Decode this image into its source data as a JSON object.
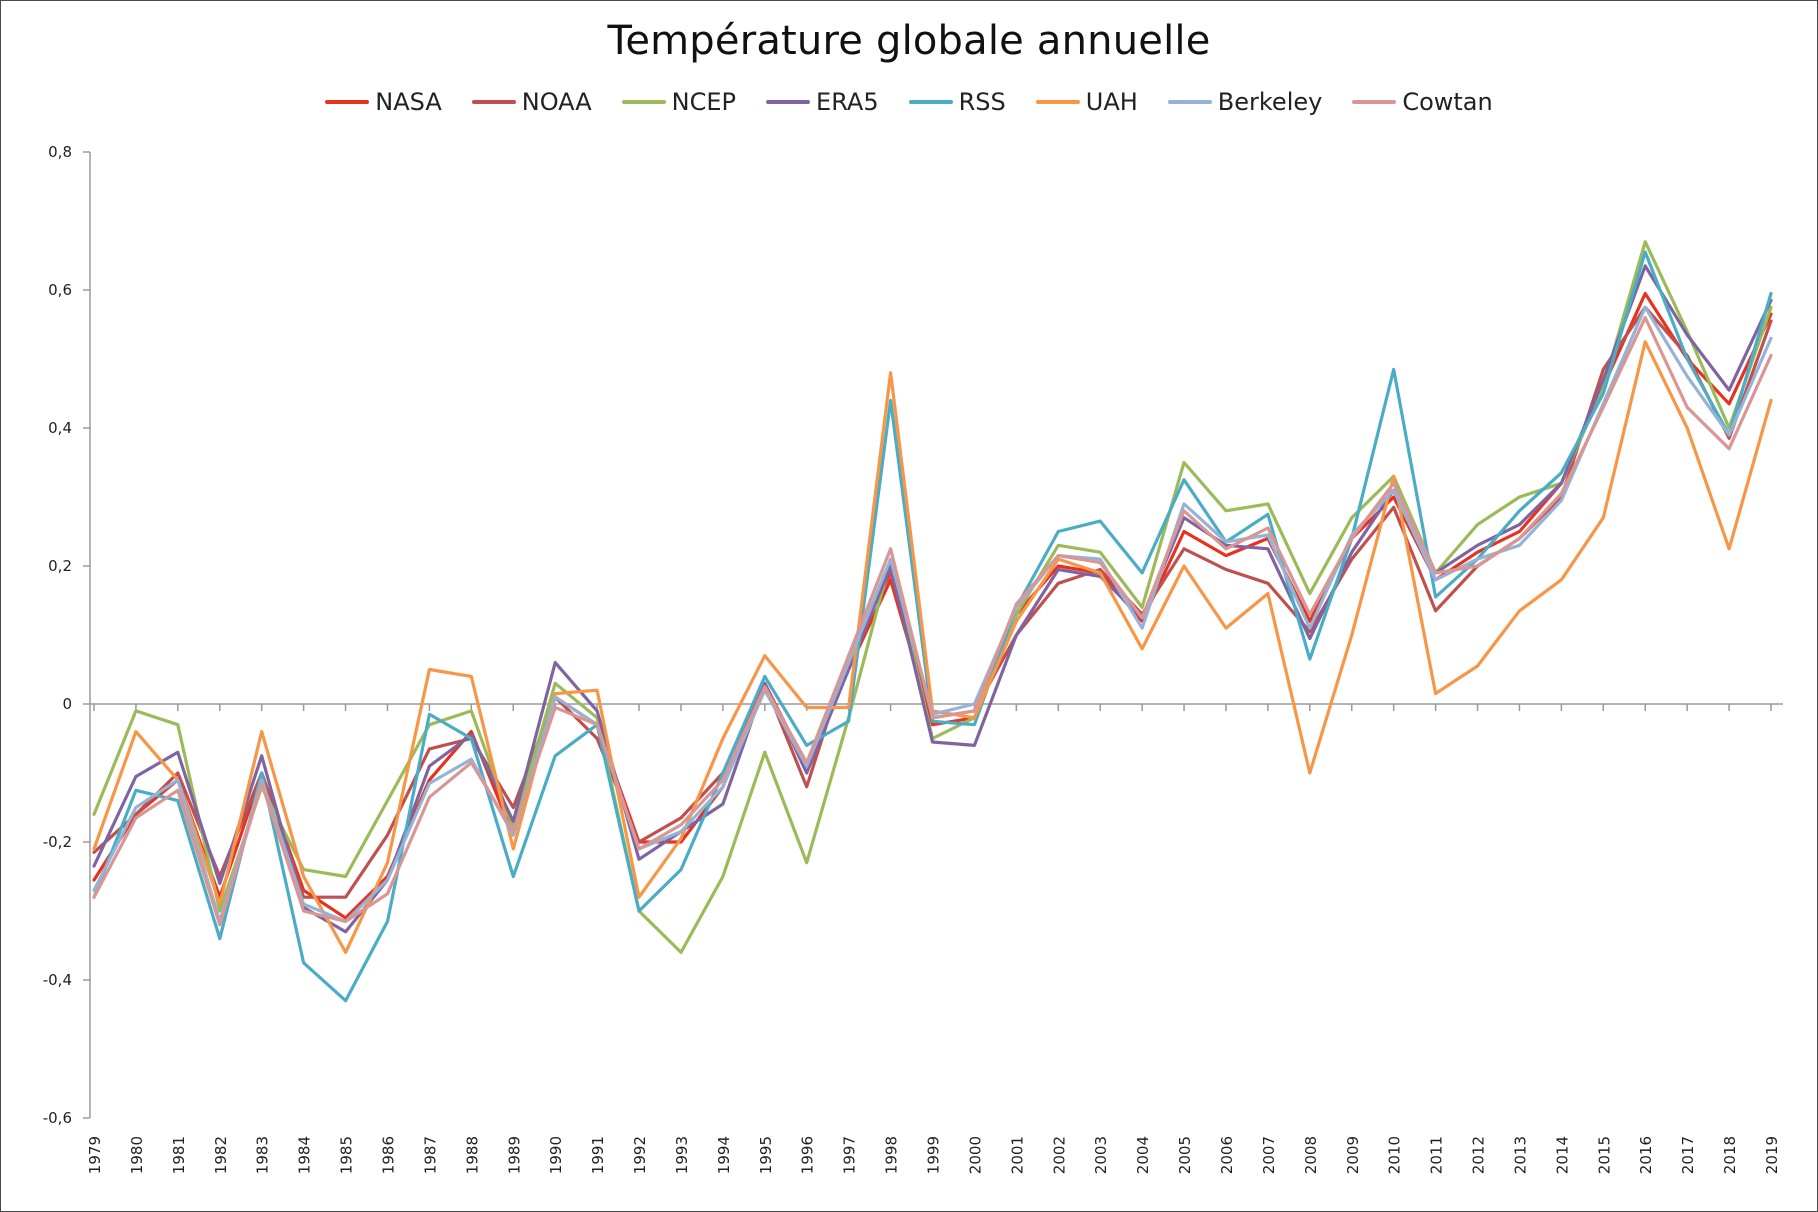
{
  "chart_data": {
    "type": "line",
    "title": "Température globale annuelle",
    "xlabel": "",
    "ylabel": "",
    "ylim": [
      -0.6,
      0.8
    ],
    "yticks": [
      -0.6,
      -0.4,
      -0.2,
      0,
      0.2,
      0.4,
      0.6,
      0.8
    ],
    "ytick_labels": [
      "-0,6",
      "-0,4",
      "-0,2",
      "0",
      "0,2",
      "0,4",
      "0,6",
      "0,8"
    ],
    "grid": false,
    "legend_position": "top",
    "categories": [
      "1979",
      "1980",
      "1981",
      "1982",
      "1983",
      "1984",
      "1985",
      "1986",
      "1987",
      "1988",
      "1989",
      "1990",
      "1991",
      "1992",
      "1993",
      "1994",
      "1995",
      "1996",
      "1997",
      "1998",
      "1999",
      "2000",
      "2001",
      "2002",
      "2003",
      "2004",
      "2005",
      "2006",
      "2007",
      "2008",
      "2009",
      "2010",
      "2011",
      "2012",
      "2013",
      "2014",
      "2015",
      "2016",
      "2017",
      "2018",
      "2019"
    ],
    "series": [
      {
        "name": "NASA",
        "color": "#e8321e",
        "values": [
          -0.255,
          -0.16,
          -0.11,
          -0.28,
          -0.1,
          -0.27,
          -0.31,
          -0.25,
          -0.11,
          -0.04,
          -0.19,
          0.01,
          -0.03,
          -0.2,
          -0.2,
          -0.12,
          0.03,
          -0.09,
          0.05,
          0.18,
          -0.03,
          -0.02,
          0.13,
          0.2,
          0.19,
          0.12,
          0.25,
          0.215,
          0.24,
          0.12,
          0.24,
          0.3,
          0.18,
          0.22,
          0.25,
          0.32,
          0.46,
          0.595,
          0.5,
          0.435,
          0.565
        ]
      },
      {
        "name": "NOAA",
        "color": "#c0504d",
        "values": [
          -0.215,
          -0.16,
          -0.1,
          -0.25,
          -0.1,
          -0.28,
          -0.28,
          -0.19,
          -0.065,
          -0.05,
          -0.15,
          0.01,
          -0.05,
          -0.2,
          -0.165,
          -0.1,
          0.03,
          -0.12,
          0.07,
          0.19,
          -0.02,
          -0.01,
          0.1,
          0.175,
          0.195,
          0.13,
          0.225,
          0.195,
          0.175,
          0.105,
          0.21,
          0.285,
          0.135,
          0.2,
          0.24,
          0.3,
          0.485,
          0.575,
          0.505,
          0.385,
          0.555
        ]
      },
      {
        "name": "NCEP",
        "color": "#9bbb59",
        "values": [
          -0.16,
          -0.01,
          -0.03,
          -0.3,
          -0.12,
          -0.24,
          -0.25,
          -0.14,
          -0.03,
          -0.01,
          -0.18,
          0.03,
          -0.02,
          -0.3,
          -0.36,
          -0.25,
          -0.07,
          -0.23,
          -0.02,
          0.21,
          -0.05,
          -0.02,
          0.13,
          0.23,
          0.22,
          0.14,
          0.35,
          0.28,
          0.29,
          0.16,
          0.27,
          0.33,
          0.19,
          0.26,
          0.3,
          0.32,
          0.46,
          0.67,
          0.54,
          0.4,
          0.575
        ]
      },
      {
        "name": "ERA5",
        "color": "#8064a2",
        "values": [
          -0.235,
          -0.105,
          -0.07,
          -0.26,
          -0.075,
          -0.295,
          -0.33,
          -0.255,
          -0.09,
          -0.045,
          -0.17,
          0.06,
          -0.01,
          -0.225,
          -0.185,
          -0.145,
          0.03,
          -0.1,
          0.05,
          0.2,
          -0.055,
          -0.06,
          0.1,
          0.195,
          0.185,
          0.125,
          0.27,
          0.23,
          0.225,
          0.095,
          0.22,
          0.31,
          0.19,
          0.23,
          0.26,
          0.32,
          0.47,
          0.635,
          0.535,
          0.455,
          0.585
        ]
      },
      {
        "name": "RSS",
        "color": "#4bacc6",
        "values": [
          -0.28,
          -0.125,
          -0.14,
          -0.34,
          -0.1,
          -0.375,
          -0.43,
          -0.315,
          -0.015,
          -0.05,
          -0.25,
          -0.075,
          -0.03,
          -0.3,
          -0.24,
          -0.1,
          0.04,
          -0.06,
          -0.025,
          0.44,
          -0.025,
          -0.03,
          0.14,
          0.25,
          0.265,
          0.19,
          0.325,
          0.235,
          0.275,
          0.065,
          0.24,
          0.485,
          0.155,
          0.21,
          0.28,
          0.335,
          0.45,
          0.655,
          0.5,
          0.39,
          0.595
        ]
      },
      {
        "name": "UAH",
        "color": "#f79646",
        "values": [
          -0.21,
          -0.04,
          -0.11,
          -0.29,
          -0.04,
          -0.25,
          -0.36,
          -0.23,
          0.05,
          0.04,
          -0.21,
          0.015,
          0.02,
          -0.28,
          -0.195,
          -0.05,
          0.07,
          -0.005,
          -0.005,
          0.48,
          -0.01,
          -0.02,
          0.12,
          0.21,
          0.19,
          0.08,
          0.2,
          0.11,
          0.16,
          -0.1,
          0.1,
          0.33,
          0.015,
          0.055,
          0.135,
          0.18,
          0.27,
          0.525,
          0.4,
          0.225,
          0.44
        ]
      },
      {
        "name": "Berkeley",
        "color": "#95b3d7",
        "values": [
          -0.27,
          -0.15,
          -0.11,
          -0.315,
          -0.11,
          -0.29,
          -0.315,
          -0.255,
          -0.115,
          -0.08,
          -0.19,
          0.01,
          -0.03,
          -0.21,
          -0.185,
          -0.12,
          0.02,
          -0.09,
          0.06,
          0.21,
          -0.015,
          0.0,
          0.14,
          0.215,
          0.21,
          0.11,
          0.29,
          0.235,
          0.245,
          0.11,
          0.245,
          0.31,
          0.18,
          0.21,
          0.23,
          0.295,
          0.435,
          0.575,
          0.475,
          0.39,
          0.53
        ]
      },
      {
        "name": "Cowtan",
        "color": "#d99694",
        "values": [
          -0.28,
          -0.165,
          -0.125,
          -0.32,
          -0.115,
          -0.3,
          -0.315,
          -0.275,
          -0.135,
          -0.085,
          -0.185,
          -0.005,
          -0.03,
          -0.21,
          -0.175,
          -0.11,
          0.025,
          -0.085,
          0.07,
          0.225,
          -0.02,
          -0.01,
          0.145,
          0.215,
          0.205,
          0.125,
          0.28,
          0.225,
          0.255,
          0.13,
          0.24,
          0.32,
          0.19,
          0.2,
          0.24,
          0.305,
          0.43,
          0.56,
          0.43,
          0.37,
          0.505
        ]
      }
    ]
  }
}
